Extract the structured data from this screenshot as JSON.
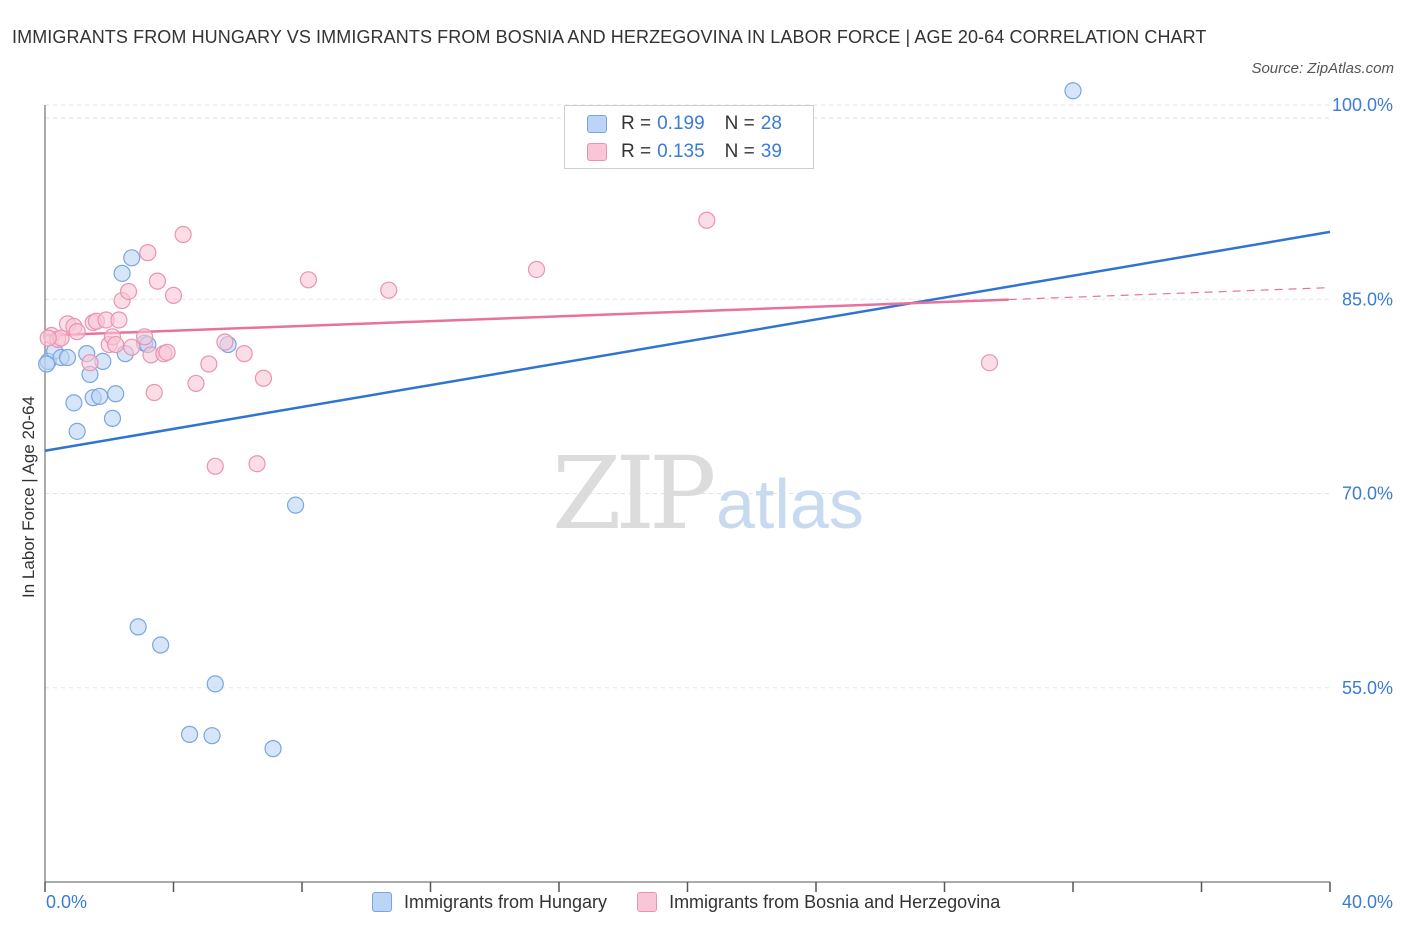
{
  "title": "IMMIGRANTS FROM HUNGARY VS IMMIGRANTS FROM BOSNIA AND HERZEGOVINA IN LABOR FORCE | AGE 20-64 CORRELATION CHART",
  "source": "Source: ZipAtlas.com",
  "watermark": {
    "zip": "ZIP",
    "atlas": "atlas"
  },
  "colors": {
    "hungary_fill": "#bcd4f5",
    "hungary_stroke": "#7aa6e0",
    "hungary_line": "#2f74d0",
    "bosnia_fill": "#f8c6d6",
    "bosnia_stroke": "#eb93b2",
    "bosnia_line": "#e8729c",
    "grid": "#e3e3e3",
    "axis": "#333333",
    "tick_label": "#3a7bd5"
  },
  "stats": [
    {
      "r_label": "R =",
      "r_value": "0.199",
      "n_label": "N =",
      "n_value": "28"
    },
    {
      "r_label": "R =",
      "r_value": "0.135",
      "n_label": "N =",
      "n_value": "39"
    }
  ],
  "legend": [
    {
      "label": "Immigrants from Hungary"
    },
    {
      "label": "Immigrants from Bosnia and Herzegovina"
    }
  ],
  "chart_data": {
    "type": "scatter",
    "title": "IMMIGRANTS FROM HUNGARY VS IMMIGRANTS FROM BOSNIA AND HERZEGOVINA IN LABOR FORCE | AGE 20-64 CORRELATION CHART",
    "xlabel": "",
    "ylabel": "In Labor Force | Age 20-64",
    "xlim": [
      0,
      40
    ],
    "ylim": [
      40,
      100
    ],
    "x_tick_labels": [
      "0.0%",
      "40.0%"
    ],
    "y_ticks": [
      55,
      70,
      85,
      100
    ],
    "y_tick_labels": [
      "55.0%",
      "70.0%",
      "85.0%",
      "100.0%"
    ],
    "grid": true,
    "legend_position": "bottom",
    "series": [
      {
        "name": "Immigrants from Hungary",
        "points": [
          [
            0.1,
            80.2
          ],
          [
            0.3,
            81.0
          ],
          [
            0.5,
            80.5
          ],
          [
            0.7,
            80.5
          ],
          [
            0.9,
            77.0
          ],
          [
            1.0,
            74.8
          ],
          [
            1.3,
            80.8
          ],
          [
            1.4,
            79.2
          ],
          [
            1.5,
            77.4
          ],
          [
            1.7,
            77.5
          ],
          [
            1.8,
            80.2
          ],
          [
            2.1,
            75.8
          ],
          [
            2.2,
            77.7
          ],
          [
            2.5,
            80.8
          ],
          [
            2.4,
            87.0
          ],
          [
            2.7,
            88.2
          ],
          [
            3.1,
            81.6
          ],
          [
            3.2,
            81.5
          ],
          [
            5.7,
            81.5
          ],
          [
            7.8,
            69.1
          ],
          [
            2.9,
            59.7
          ],
          [
            3.6,
            58.3
          ],
          [
            4.5,
            51.4
          ],
          [
            5.3,
            55.3
          ],
          [
            5.2,
            51.3
          ],
          [
            7.1,
            50.3
          ],
          [
            32.0,
            101.1
          ],
          [
            0.05,
            80.0
          ]
        ],
        "trend": {
          "x": [
            0,
            40
          ],
          "y": [
            73.3,
            90.2
          ]
        }
      },
      {
        "name": "Immigrants from Bosnia and Herzegovina",
        "points": [
          [
            0.2,
            82.2
          ],
          [
            0.4,
            81.9
          ],
          [
            0.5,
            82.0
          ],
          [
            0.7,
            83.1
          ],
          [
            0.9,
            82.9
          ],
          [
            1.0,
            82.5
          ],
          [
            1.4,
            80.1
          ],
          [
            1.5,
            83.2
          ],
          [
            1.6,
            83.3
          ],
          [
            1.9,
            83.4
          ],
          [
            2.0,
            81.5
          ],
          [
            2.1,
            82.1
          ],
          [
            2.3,
            83.4
          ],
          [
            2.2,
            81.5
          ],
          [
            2.4,
            84.9
          ],
          [
            2.6,
            85.6
          ],
          [
            2.7,
            81.3
          ],
          [
            3.1,
            82.1
          ],
          [
            3.2,
            88.6
          ],
          [
            3.3,
            80.7
          ],
          [
            3.4,
            77.8
          ],
          [
            3.5,
            86.4
          ],
          [
            3.7,
            80.8
          ],
          [
            3.8,
            80.9
          ],
          [
            4.0,
            85.3
          ],
          [
            4.3,
            90.0
          ],
          [
            4.7,
            78.5
          ],
          [
            5.1,
            80.0
          ],
          [
            5.3,
            72.1
          ],
          [
            5.6,
            81.7
          ],
          [
            6.2,
            80.8
          ],
          [
            6.6,
            72.3
          ],
          [
            6.8,
            78.9
          ],
          [
            8.2,
            86.5
          ],
          [
            10.7,
            85.7
          ],
          [
            15.3,
            87.3
          ],
          [
            20.6,
            91.1
          ],
          [
            29.4,
            80.1
          ],
          [
            0.1,
            82.0
          ]
        ],
        "trend": {
          "x": [
            0,
            40
          ],
          "y": [
            82.2,
            85.9
          ]
        }
      }
    ]
  }
}
